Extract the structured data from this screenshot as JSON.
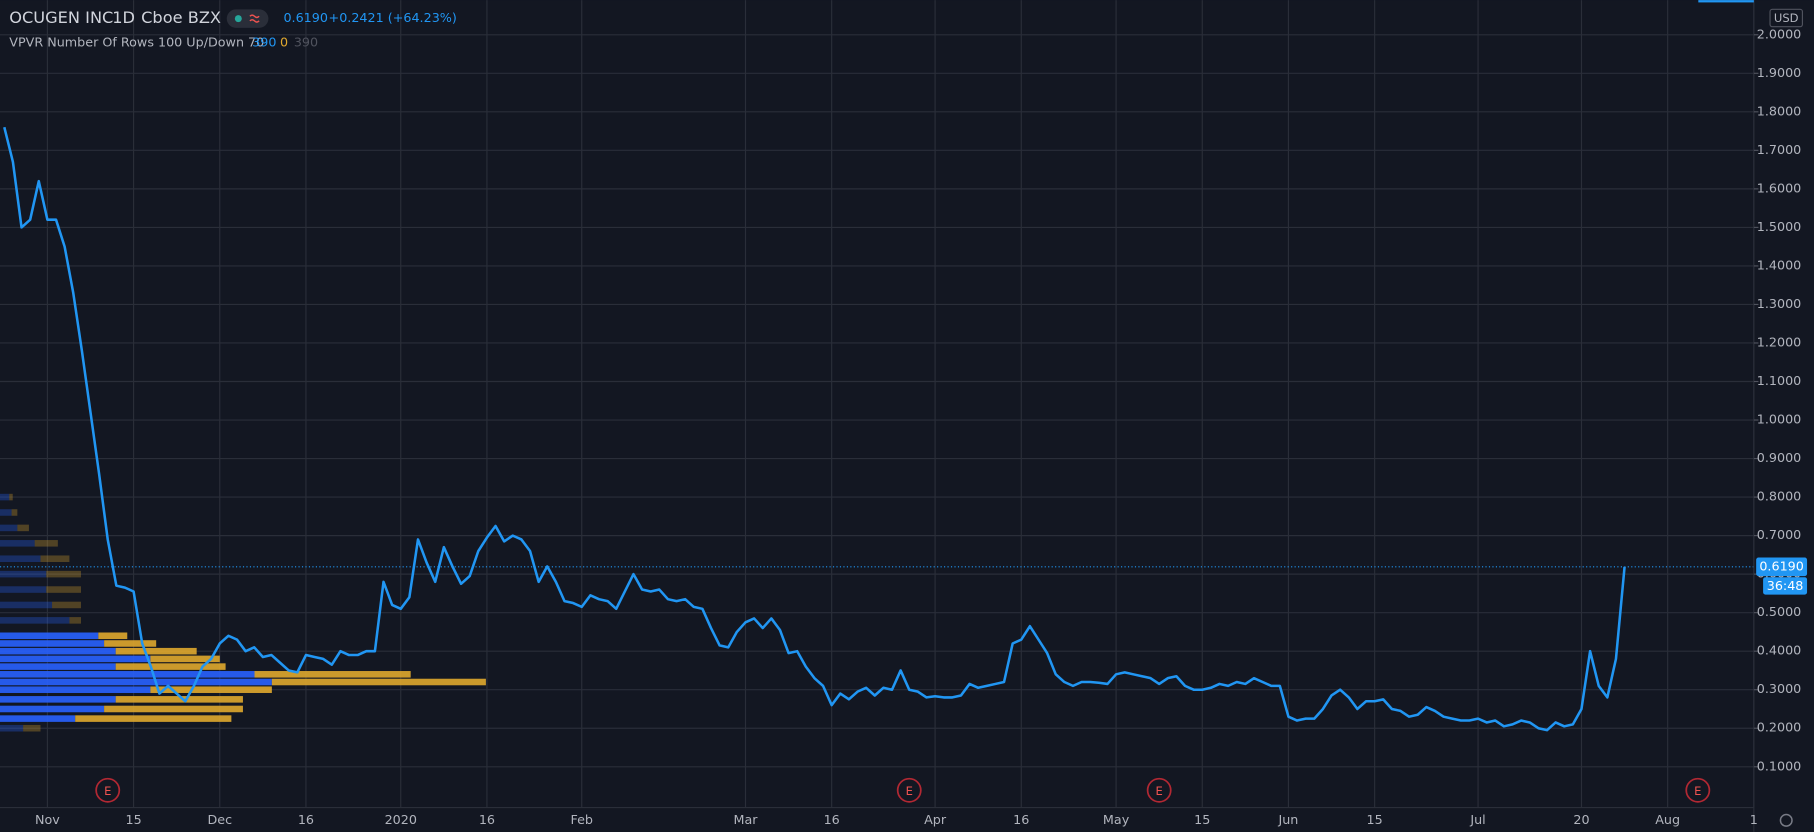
{
  "chart_data": {
    "type": "line",
    "title": "OCUGEN INC",
    "interval": "1D",
    "exchange": "Cboe BZX",
    "last_price": {
      "value": 0.619,
      "label": "0.6190"
    },
    "change": "+0.2421 (+64.23%)",
    "indicator": "VPVR Number Of Rows 100 Up/Down 70",
    "indicator_values": [
      "390",
      "0",
      "390"
    ],
    "countdown": "36:48",
    "currency": "USD",
    "color": "#2196f3",
    "grid": true,
    "xlim": [
      -5.5,
      198
    ],
    "ylim": [
      0,
      2.09
    ],
    "xticks": [
      {
        "value": 0,
        "label": "Nov"
      },
      {
        "value": 10,
        "label": "15"
      },
      {
        "value": 20,
        "label": "Dec"
      },
      {
        "value": 30,
        "label": "16"
      },
      {
        "value": 41,
        "label": "2020"
      },
      {
        "value": 51,
        "label": "16"
      },
      {
        "value": 62,
        "label": "Feb"
      },
      {
        "value": 81,
        "label": "Mar"
      },
      {
        "value": 91,
        "label": "16"
      },
      {
        "value": 103,
        "label": "Apr"
      },
      {
        "value": 113,
        "label": "16"
      },
      {
        "value": 124,
        "label": "May"
      },
      {
        "value": 134,
        "label": "15"
      },
      {
        "value": 144,
        "label": "Jun"
      },
      {
        "value": 154,
        "label": "15"
      },
      {
        "value": 166,
        "label": "Jul"
      },
      {
        "value": 178,
        "label": "20"
      },
      {
        "value": 188,
        "label": "Aug"
      },
      {
        "value": 198,
        "label": "1"
      }
    ],
    "yticks": [
      {
        "value": 0.1,
        "label": "0.1000"
      },
      {
        "value": 0.2,
        "label": "0.2000"
      },
      {
        "value": 0.3,
        "label": "0.3000"
      },
      {
        "value": 0.4,
        "label": "0.4000"
      },
      {
        "value": 0.5,
        "label": "0.5000"
      },
      {
        "value": 0.6,
        "label": "0.6000"
      },
      {
        "value": 0.7,
        "label": "0.7000"
      },
      {
        "value": 0.8,
        "label": "0.8000"
      },
      {
        "value": 0.9,
        "label": "0.9000"
      },
      {
        "value": 1.0,
        "label": "1.0000"
      },
      {
        "value": 1.1,
        "label": "1.1000"
      },
      {
        "value": 1.2,
        "label": "1.2000"
      },
      {
        "value": 1.3,
        "label": "1.3000"
      },
      {
        "value": 1.4,
        "label": "1.4000"
      },
      {
        "value": 1.5,
        "label": "1.5000"
      },
      {
        "value": 1.6,
        "label": "1.6000"
      },
      {
        "value": 1.7,
        "label": "1.7000"
      },
      {
        "value": 1.8,
        "label": "1.8000"
      },
      {
        "value": 1.9,
        "label": "1.9000"
      },
      {
        "value": 2.0,
        "label": "2.0000"
      }
    ],
    "x": [
      -5,
      -4,
      -3,
      -2,
      -1,
      0,
      1,
      2,
      3,
      4,
      5,
      6,
      7,
      8,
      9,
      10,
      11,
      12,
      13,
      14,
      15,
      16,
      17,
      18,
      19,
      20,
      21,
      22,
      23,
      24,
      25,
      26,
      27,
      28,
      29,
      30,
      31,
      32,
      33,
      34,
      35,
      36,
      37,
      38,
      39,
      40,
      41,
      42,
      43,
      44,
      45,
      46,
      47,
      48,
      49,
      50,
      51,
      52,
      53,
      54,
      55,
      56,
      57,
      58,
      59,
      60,
      61,
      62,
      63,
      64,
      65,
      66,
      67,
      68,
      69,
      70,
      71,
      72,
      73,
      74,
      75,
      76,
      77,
      78,
      79,
      80,
      81,
      82,
      83,
      84,
      85,
      86,
      87,
      88,
      89,
      90,
      91,
      92,
      93,
      94,
      95,
      96,
      97,
      98,
      99,
      100,
      101,
      102,
      103,
      104,
      105,
      106,
      107,
      108,
      109,
      110,
      111,
      112,
      113,
      114,
      115,
      116,
      117,
      118,
      119,
      120,
      121,
      122,
      123,
      124,
      125,
      126,
      127,
      128,
      129,
      130,
      131,
      132,
      133,
      134,
      135,
      136,
      137,
      138,
      139,
      140,
      141,
      142,
      143,
      144,
      145,
      146,
      147,
      148,
      149,
      150,
      151,
      152,
      153,
      154,
      155,
      156,
      157,
      158,
      159,
      160,
      161,
      162,
      163,
      164,
      165,
      166,
      167,
      168,
      169,
      170,
      171,
      172,
      173,
      174,
      175,
      176,
      177,
      178,
      179,
      180,
      181,
      182,
      183
    ],
    "values": [
      1.76,
      1.67,
      1.5,
      1.52,
      1.62,
      1.52,
      1.52,
      1.45,
      1.33,
      1.18,
      1.02,
      0.86,
      0.69,
      0.57,
      0.565,
      0.555,
      0.42,
      0.36,
      0.29,
      0.31,
      0.29,
      0.27,
      0.31,
      0.36,
      0.38,
      0.42,
      0.44,
      0.43,
      0.4,
      0.41,
      0.385,
      0.39,
      0.37,
      0.35,
      0.345,
      0.39,
      0.385,
      0.38,
      0.365,
      0.4,
      0.39,
      0.39,
      0.4,
      0.4,
      0.58,
      0.52,
      0.51,
      0.54,
      0.69,
      0.63,
      0.58,
      0.67,
      0.62,
      0.575,
      0.595,
      0.66,
      0.695,
      0.725,
      0.685,
      0.7,
      0.69,
      0.66,
      0.58,
      0.62,
      0.58,
      0.53,
      0.525,
      0.515,
      0.545,
      0.535,
      0.53,
      0.51,
      0.555,
      0.6,
      0.56,
      0.555,
      0.56,
      0.535,
      0.53,
      0.535,
      0.515,
      0.51,
      0.46,
      0.415,
      0.41,
      0.45,
      0.475,
      0.485,
      0.46,
      0.485,
      0.455,
      0.395,
      0.4,
      0.36,
      0.33,
      0.31,
      0.26,
      0.29,
      0.275,
      0.295,
      0.305,
      0.285,
      0.305,
      0.3,
      0.35,
      0.3,
      0.295,
      0.28,
      0.283,
      0.28,
      0.28,
      0.285,
      0.315,
      0.305,
      0.31,
      0.315,
      0.32,
      0.42,
      0.43,
      0.465,
      0.43,
      0.395,
      0.34,
      0.32,
      0.31,
      0.32,
      0.32,
      0.318,
      0.315,
      0.34,
      0.345,
      0.34,
      0.335,
      0.33,
      0.315,
      0.33,
      0.335,
      0.31,
      0.3,
      0.3,
      0.305,
      0.315,
      0.31,
      0.32,
      0.315,
      0.33,
      0.32,
      0.31,
      0.31,
      0.23,
      0.22,
      0.225,
      0.225,
      0.25,
      0.285,
      0.3,
      0.28,
      0.25,
      0.27,
      0.27,
      0.275,
      0.25,
      0.245,
      0.23,
      0.235,
      0.255,
      0.245,
      0.23,
      0.225,
      0.22,
      0.22,
      0.225,
      0.215,
      0.22,
      0.205,
      0.21,
      0.22,
      0.215,
      0.2,
      0.195,
      0.215,
      0.205,
      0.21,
      0.25,
      0.4,
      0.31,
      0.28,
      0.38,
      0.619
    ],
    "volume_profile": {
      "up_color": "#2962ff",
      "down_color": "#e0a82e",
      "value_area": [
        0.21,
        0.46
      ],
      "prices": [
        0.2,
        0.225,
        0.25,
        0.275,
        0.3,
        0.32,
        0.34,
        0.36,
        0.38,
        0.4,
        0.42,
        0.44,
        0.48,
        0.52,
        0.56,
        0.6,
        0.64,
        0.68,
        0.72,
        0.76,
        0.8
      ],
      "up": [
        20,
        65,
        90,
        100,
        130,
        235,
        220,
        100,
        130,
        100,
        90,
        85,
        60,
        45,
        40,
        40,
        35,
        30,
        15,
        10,
        8
      ],
      "down": [
        15,
        135,
        120,
        110,
        105,
        185,
        135,
        95,
        60,
        70,
        45,
        25,
        10,
        25,
        30,
        30,
        25,
        20,
        10,
        5,
        3
      ]
    },
    "events": {
      "label": "E",
      "x": [
        7,
        100,
        129,
        191.5
      ]
    }
  }
}
